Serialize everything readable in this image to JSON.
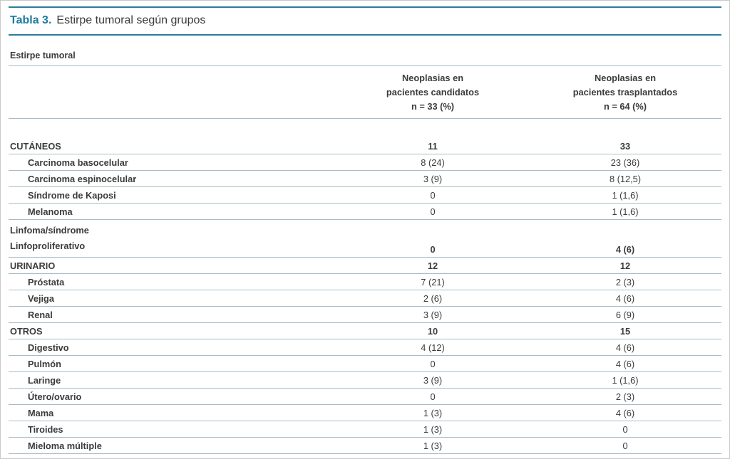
{
  "accent_color": "#1d7a9c",
  "title": {
    "label": "Tabla 3.",
    "text": "Estirpe tumoral según grupos"
  },
  "table": {
    "group_header": "Estirpe tumoral",
    "col_headers": [
      "Neoplasias en\npacientes candidatos\nn = 33 (%)",
      "Neoplasias en\npacientes trasplantados\nn = 64 (%)"
    ],
    "rows": [
      {
        "label": "CUTÁNEOS",
        "candidatos": "11",
        "trasplantados": "33"
      },
      {
        "label": "Carcinoma basocelular",
        "candidatos": "8 (24)",
        "trasplantados": "23 (36)"
      },
      {
        "label": "Carcinoma espinocelular",
        "candidatos": "3 (9)",
        "trasplantados": "8 (12,5)"
      },
      {
        "label": "Síndrome de Kaposi",
        "candidatos": "0",
        "trasplantados": "1 (1,6)"
      },
      {
        "label": "Melanoma",
        "candidatos": "0",
        "trasplantados": "1 (1,6)"
      },
      {
        "label": "Linfoma/síndrome\nLinfoproliferativo",
        "candidatos": "0",
        "trasplantados": "4 (6)"
      },
      {
        "label": "URINARIO",
        "candidatos": "12",
        "trasplantados": "12"
      },
      {
        "label": "Próstata",
        "candidatos": "7 (21)",
        "trasplantados": "2 (3)"
      },
      {
        "label": "Vejiga",
        "candidatos": "2 (6)",
        "trasplantados": "4 (6)"
      },
      {
        "label": "Renal",
        "candidatos": "3 (9)",
        "trasplantados": "6 (9)"
      },
      {
        "label": "OTROS",
        "candidatos": "10",
        "trasplantados": "15"
      },
      {
        "label": "Digestivo",
        "candidatos": "4 (12)",
        "trasplantados": "4 (6)"
      },
      {
        "label": "Pulmón",
        "candidatos": "0",
        "trasplantados": "4 (6)"
      },
      {
        "label": "Laringe",
        "candidatos": "3 (9)",
        "trasplantados": "1 (1,6)"
      },
      {
        "label": "Útero/ovario",
        "candidatos": "0",
        "trasplantados": "2 (3)"
      },
      {
        "label": "Mama",
        "candidatos": "1 (3)",
        "trasplantados": "4 (6)"
      },
      {
        "label": "Tiroides",
        "candidatos": "1 (3)",
        "trasplantados": "0"
      },
      {
        "label": "Mieloma múltiple",
        "candidatos": "1 (3)",
        "trasplantados": "0"
      }
    ]
  }
}
